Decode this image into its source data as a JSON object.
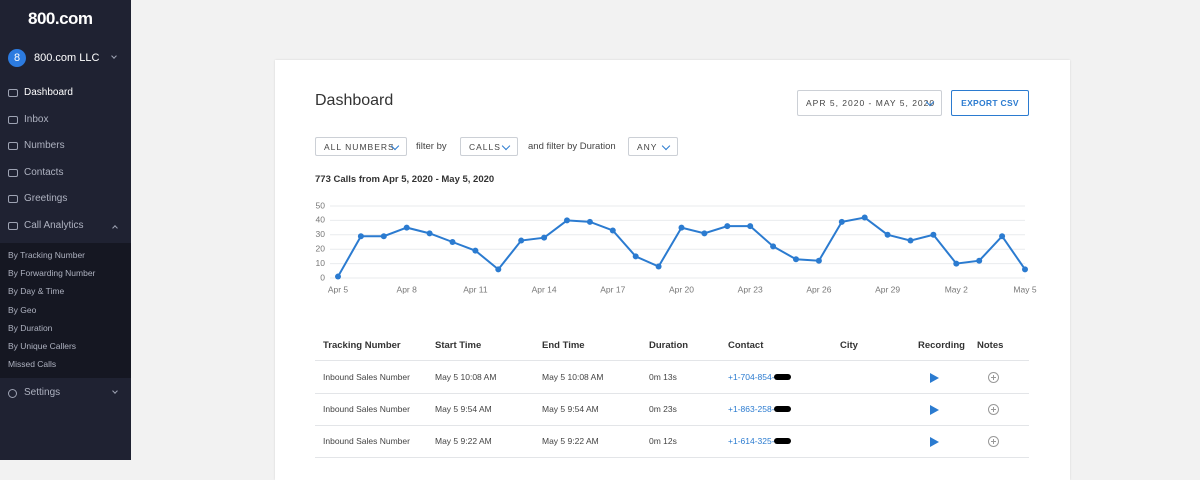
{
  "sidebar": {
    "logo": "800.com",
    "account": {
      "initial": "8",
      "name": "800.com LLC"
    },
    "nav": [
      "Dashboard",
      "Inbox",
      "Numbers",
      "Contacts",
      "Greetings",
      "Call Analytics"
    ],
    "subnav": [
      "By Tracking Number",
      "By Forwarding Number",
      "By Day & Time",
      "By Geo",
      "By Duration",
      "By Unique Callers",
      "Missed Calls"
    ],
    "settings": "Settings"
  },
  "header": {
    "title": "Dashboard",
    "date_range": "APR 5, 2020 - MAY 5, 2020",
    "export": "EXPORT CSV"
  },
  "filters": {
    "numbers": "ALL NUMBERS",
    "filter_by": "filter by",
    "calls": "CALLS",
    "duration_label": "and filter by Duration",
    "duration": "ANY"
  },
  "chart_data": {
    "type": "line",
    "title": "773 Calls from Apr 5, 2020 - May 5, 2020",
    "categories": [
      "Apr 5",
      null,
      null,
      "Apr 8",
      null,
      null,
      "Apr 11",
      null,
      null,
      "Apr 14",
      null,
      null,
      "Apr 17",
      null,
      null,
      "Apr 20",
      null,
      null,
      "Apr 23",
      null,
      null,
      "Apr 26",
      null,
      null,
      "Apr 29",
      null,
      null,
      "May 2",
      null,
      null,
      "May 5"
    ],
    "values": [
      1,
      29,
      29,
      35,
      31,
      25,
      19,
      6,
      26,
      28,
      40,
      39,
      33,
      15,
      8,
      35,
      31,
      36,
      36,
      22,
      13,
      12,
      39,
      42,
      30,
      26,
      30,
      10,
      12,
      29,
      6
    ],
    "color": "#2b7bd0",
    "ylim": [
      0,
      50
    ],
    "yticks": [
      0,
      10,
      20,
      30,
      40,
      50
    ],
    "grid": true
  },
  "table": {
    "headers": [
      "Tracking Number",
      "Start Time",
      "End Time",
      "Duration",
      "Contact",
      "City",
      "Recording",
      "Notes"
    ],
    "rows": [
      {
        "tracking_number": "Inbound Sales Number",
        "start_time": "May 5 10:08 AM",
        "end_time": "May 5 10:08 AM",
        "duration": "0m 13s",
        "contact": "+1-704-854-"
      },
      {
        "tracking_number": "Inbound Sales Number",
        "start_time": "May 5 9:54 AM",
        "end_time": "May 5 9:54 AM",
        "duration": "0m 23s",
        "contact": "+1-863-258-"
      },
      {
        "tracking_number": "Inbound Sales Number",
        "start_time": "May 5 9:22 AM",
        "end_time": "May 5 9:22 AM",
        "duration": "0m 12s",
        "contact": "+1-614-325-"
      }
    ]
  }
}
